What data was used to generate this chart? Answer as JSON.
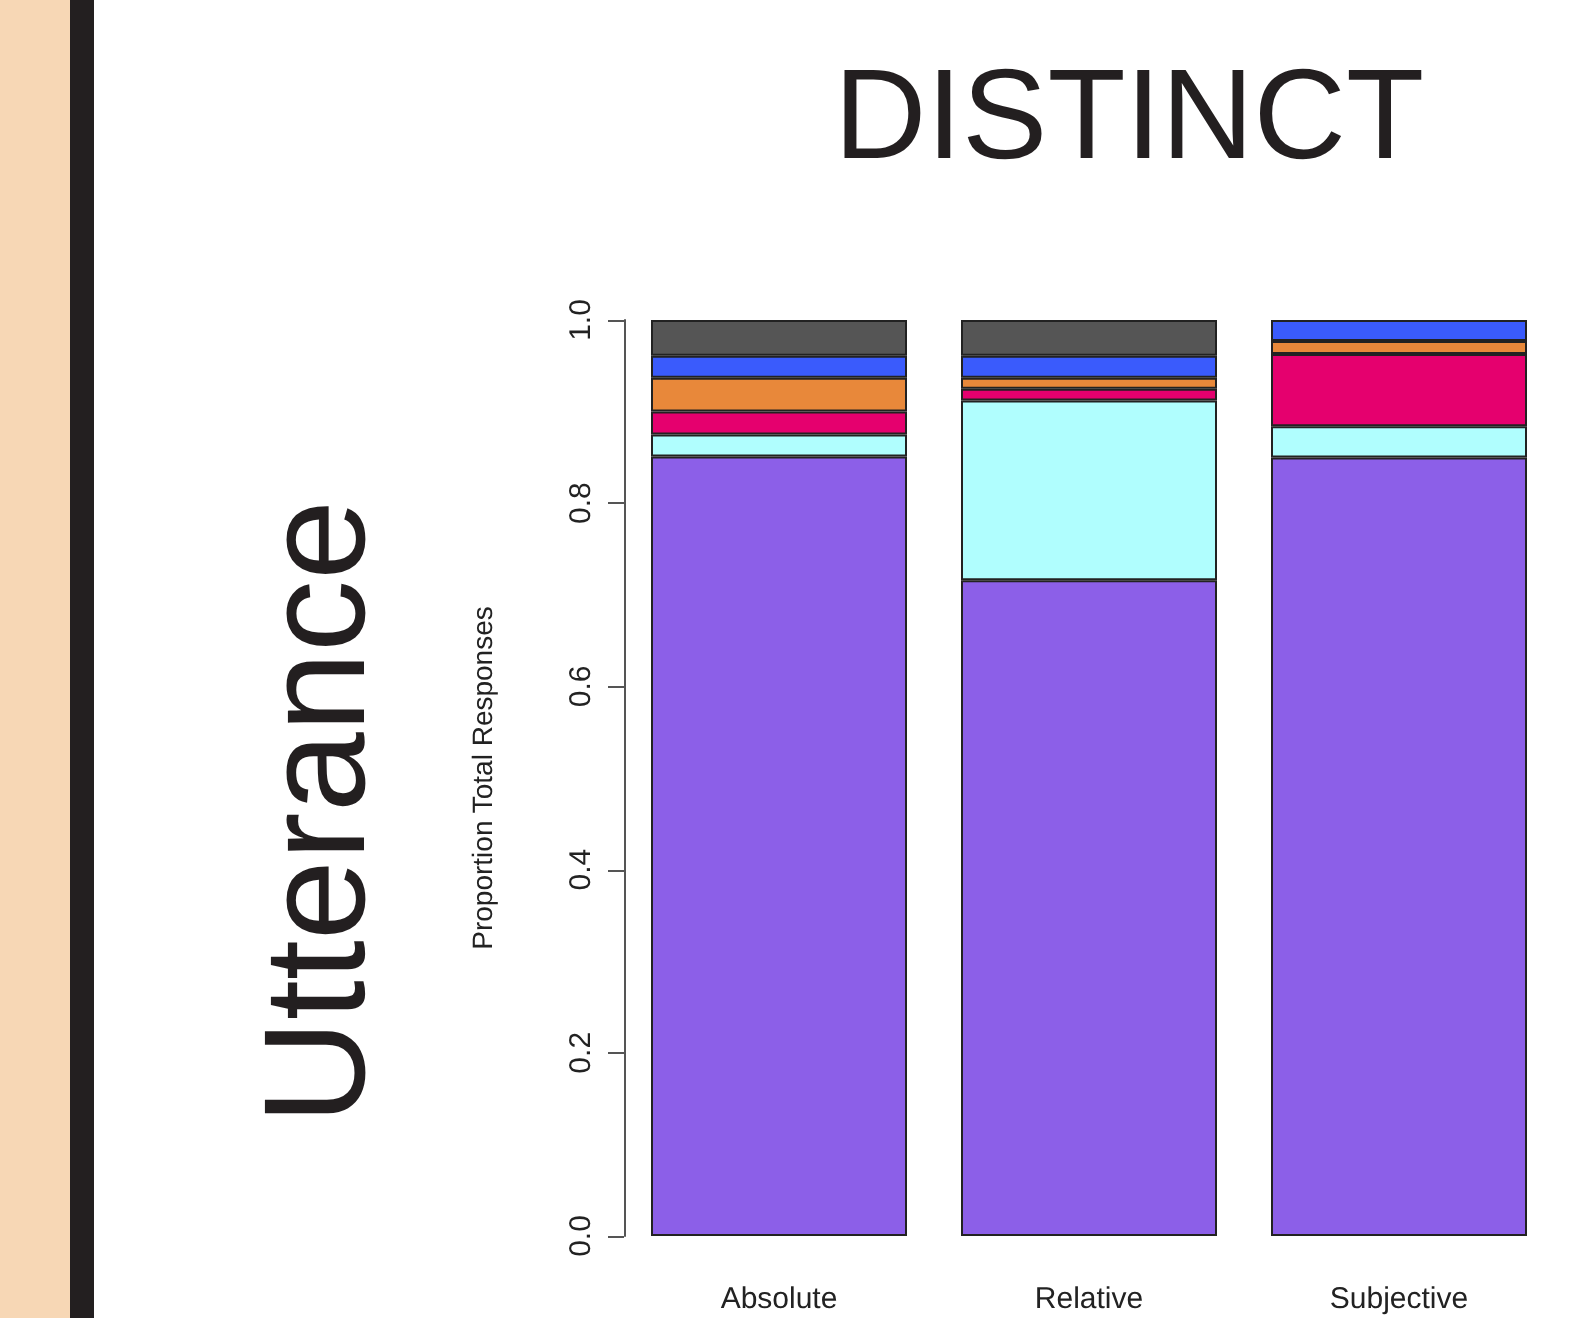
{
  "chart_data": {
    "type": "bar",
    "title": "DISTINCT",
    "ylabel": "Proportion Total Responses",
    "annotations": [
      "Utterance"
    ],
    "categories": [
      "Absolute",
      "Relative",
      "Subjective"
    ],
    "stacked": true,
    "series": [
      {
        "color": "#8c5fe8",
        "values": [
          0.851,
          0.716,
          0.85
        ]
      },
      {
        "color": "#b0fefe",
        "values": [
          0.024,
          0.196,
          0.034
        ]
      },
      {
        "color": "#e5006e",
        "values": [
          0.025,
          0.013,
          0.079
        ]
      },
      {
        "color": "#e8883a",
        "values": [
          0.037,
          0.012,
          0.014
        ]
      },
      {
        "color": "#3a5bfc",
        "values": [
          0.024,
          0.024,
          0.023
        ]
      },
      {
        "color": "#555555",
        "values": [
          0.039,
          0.039,
          0
        ]
      }
    ],
    "ylim": [
      0,
      1
    ],
    "yticks": [
      {
        "value": 0,
        "label": "0.0"
      },
      {
        "value": 0.2,
        "label": "0.2"
      },
      {
        "value": 0.4,
        "label": "0.4"
      },
      {
        "value": 0.6,
        "label": "0.6"
      },
      {
        "value": 0.8,
        "label": "0.8"
      },
      {
        "value": 1,
        "label": "1.0"
      }
    ],
    "grid": false
  }
}
